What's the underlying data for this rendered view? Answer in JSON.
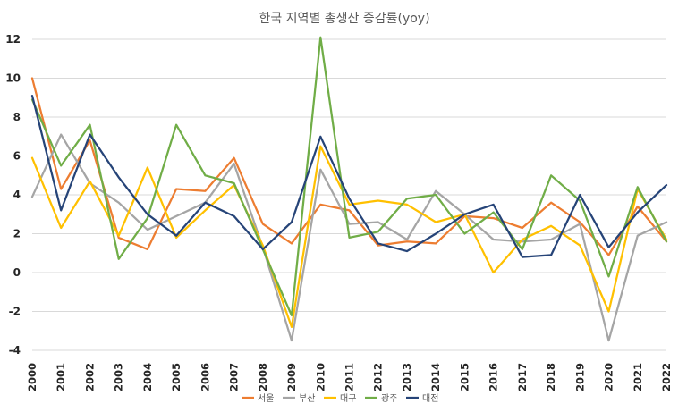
{
  "chart_data": {
    "type": "line",
    "title": "한국 지역별 총생산 증감률(yoy)",
    "xlabel": "",
    "ylabel": "",
    "x": [
      "2000",
      "2001",
      "2002",
      "2003",
      "2004",
      "2005",
      "2006",
      "2007",
      "2008",
      "2009",
      "2010",
      "2011",
      "2012",
      "2013",
      "2014",
      "2015",
      "2016",
      "2017",
      "2018",
      "2019",
      "2020",
      "2021",
      "2022"
    ],
    "ylim": [
      -4,
      12
    ],
    "yticks": [
      -4,
      -2,
      0,
      2,
      4,
      6,
      8,
      10,
      12
    ],
    "grid": "horizontal",
    "legend": "bottom",
    "series": [
      {
        "name": "서울",
        "color": "#ED7D31",
        "values": [
          10.0,
          4.3,
          6.8,
          1.8,
          1.2,
          4.3,
          4.2,
          5.9,
          2.5,
          1.5,
          3.5,
          3.2,
          1.4,
          1.6,
          1.5,
          2.9,
          2.8,
          2.3,
          3.6,
          2.6,
          0.9,
          3.4,
          1.6
        ]
      },
      {
        "name": "부산",
        "color": "#A5A5A5",
        "values": [
          3.9,
          7.1,
          4.6,
          3.6,
          2.2,
          2.9,
          3.6,
          5.6,
          1.3,
          -3.5,
          5.3,
          2.5,
          2.6,
          1.7,
          4.2,
          3.0,
          1.7,
          1.6,
          1.7,
          2.5,
          -3.5,
          1.9,
          2.6
        ]
      },
      {
        "name": "대구",
        "color": "#FFC000",
        "values": [
          5.9,
          2.3,
          4.7,
          1.9,
          5.4,
          1.8,
          3.2,
          4.5,
          1.4,
          -2.8,
          6.5,
          3.5,
          3.7,
          3.5,
          2.6,
          3.0,
          0.0,
          1.7,
          2.4,
          1.4,
          -2.0,
          4.3,
          1.7
        ]
      },
      {
        "name": "광주",
        "color": "#70AD47",
        "values": [
          8.9,
          5.5,
          7.6,
          0.7,
          2.8,
          7.6,
          5.0,
          4.6,
          1.2,
          -2.2,
          12.1,
          1.8,
          2.1,
          3.8,
          4.0,
          2.0,
          3.1,
          1.2,
          5.0,
          3.7,
          -0.2,
          4.4,
          1.6
        ]
      },
      {
        "name": "대전",
        "color": "#264478",
        "values": [
          9.1,
          3.2,
          7.1,
          4.9,
          3.0,
          1.9,
          3.6,
          2.9,
          1.2,
          2.6,
          7.0,
          3.8,
          1.5,
          1.1,
          2.0,
          3.0,
          3.5,
          0.8,
          0.9,
          4.0,
          1.3,
          3.1,
          4.5
        ]
      }
    ]
  }
}
